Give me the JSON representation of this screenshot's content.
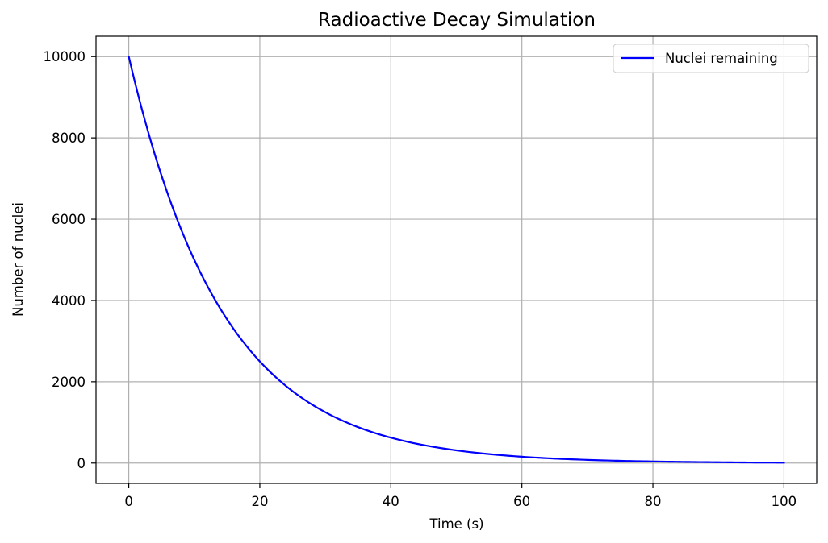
{
  "chart_data": {
    "type": "line",
    "title": "Radioactive Decay Simulation",
    "xlabel": "Time (s)",
    "ylabel": "Number of nuclei",
    "xlim": [
      -5,
      105
    ],
    "ylim": [
      -500,
      10500
    ],
    "xticks": [
      0,
      20,
      40,
      60,
      80,
      100
    ],
    "yticks": [
      0,
      2000,
      4000,
      6000,
      8000,
      10000
    ],
    "xtick_labels": [
      "0",
      "20",
      "40",
      "60",
      "80",
      "100"
    ],
    "ytick_labels": [
      "0",
      "2000",
      "4000",
      "6000",
      "8000",
      "10000"
    ],
    "grid": true,
    "legend_position": "top-right",
    "series": [
      {
        "name": "Nuclei remaining",
        "color": "#0000ff",
        "x": [
          0,
          5,
          10,
          15,
          20,
          25,
          30,
          35,
          40,
          45,
          50,
          55,
          60,
          65,
          70,
          75,
          80,
          85,
          90,
          95,
          100
        ],
        "y": [
          10000,
          7071,
          5000,
          3536,
          2500,
          1768,
          1250,
          884,
          625,
          442,
          313,
          221,
          156,
          110,
          78,
          55,
          39,
          28,
          20,
          14,
          10
        ]
      }
    ]
  }
}
